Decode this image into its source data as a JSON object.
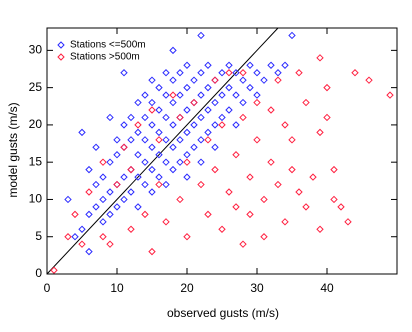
{
  "chart_data": {
    "type": "scatter",
    "xlabel": "observed gusts (m/s)",
    "ylabel": "model gusts (m/s)",
    "xlim": [
      0,
      50
    ],
    "ylim": [
      0,
      33
    ],
    "xticks": [
      0,
      10,
      20,
      30,
      40
    ],
    "yticks": [
      0,
      5,
      10,
      15,
      20,
      25,
      30
    ],
    "legend": "upper left",
    "marker": "diamond",
    "series": [
      {
        "name": "Stations <=500m",
        "color": "#2b2bff",
        "x": [
          6,
          6,
          7,
          7,
          8,
          8,
          8,
          9,
          9,
          9,
          10,
          10,
          10,
          10,
          11,
          11,
          11,
          11,
          12,
          12,
          12,
          12,
          13,
          13,
          13,
          13,
          13,
          14,
          14,
          14,
          14,
          14,
          15,
          15,
          15,
          15,
          15,
          15,
          16,
          16,
          16,
          16,
          16,
          17,
          17,
          17,
          17,
          17,
          17,
          18,
          18,
          18,
          18,
          18,
          19,
          19,
          19,
          19,
          19,
          20,
          20,
          20,
          20,
          20,
          20,
          21,
          21,
          21,
          21,
          22,
          22,
          22,
          22,
          22,
          23,
          23,
          23,
          23,
          24,
          24,
          24,
          24,
          25,
          25,
          25,
          26,
          26,
          26,
          27,
          27,
          27,
          28,
          28,
          29,
          29,
          30,
          30,
          31,
          32,
          33,
          34,
          35,
          5,
          4,
          6,
          7,
          5,
          3,
          22,
          18,
          11,
          9
        ],
        "values": [
          3,
          8,
          9,
          12,
          7,
          10,
          13,
          8,
          11,
          15,
          9,
          12,
          16,
          18,
          10,
          13,
          17,
          20,
          11,
          14,
          18,
          21,
          9,
          13,
          16,
          19,
          23,
          12,
          15,
          18,
          21,
          24,
          11,
          14,
          17,
          20,
          23,
          26,
          13,
          16,
          19,
          22,
          25,
          12,
          15,
          18,
          21,
          24,
          27,
          14,
          17,
          20,
          23,
          26,
          15,
          18,
          21,
          24,
          27,
          13,
          16,
          19,
          22,
          25,
          28,
          17,
          20,
          23,
          26,
          15,
          18,
          21,
          24,
          27,
          19,
          22,
          25,
          28,
          17,
          20,
          23,
          26,
          21,
          24,
          27,
          22,
          25,
          28,
          20,
          24,
          27,
          23,
          26,
          25,
          28,
          24,
          27,
          26,
          28,
          27,
          28,
          32,
          6,
          5,
          14,
          17,
          19,
          10,
          32,
          30,
          27,
          21
        ]
      },
      {
        "name": "Stations >500m",
        "color": "#ff2040",
        "x": [
          1,
          3,
          4,
          5,
          6,
          8,
          8,
          9,
          10,
          11,
          12,
          12,
          13,
          14,
          15,
          15,
          16,
          16,
          17,
          18,
          19,
          19,
          20,
          20,
          21,
          22,
          23,
          23,
          24,
          24,
          25,
          25,
          26,
          26,
          27,
          27,
          28,
          28,
          28,
          29,
          29,
          30,
          30,
          31,
          31,
          32,
          32,
          33,
          33,
          34,
          34,
          35,
          35,
          36,
          36,
          37,
          37,
          38,
          39,
          39,
          40,
          40,
          41,
          41,
          42,
          43,
          44,
          46,
          49,
          39
        ],
        "values": [
          0.5,
          5,
          8,
          4,
          11,
          5,
          15,
          4,
          12,
          17,
          6,
          14,
          20,
          8,
          22,
          3,
          12,
          18,
          7,
          24,
          10,
          21,
          5,
          15,
          23,
          12,
          8,
          18,
          14,
          26,
          6,
          20,
          11,
          27,
          9,
          16,
          4,
          21,
          27,
          13,
          8,
          18,
          23,
          10,
          5,
          15,
          22,
          12,
          26,
          20,
          7,
          14,
          18,
          11,
          27,
          9,
          23,
          13,
          6,
          19,
          25,
          21,
          10,
          14,
          9,
          7,
          27,
          26,
          24,
          29
        ]
      }
    ]
  }
}
